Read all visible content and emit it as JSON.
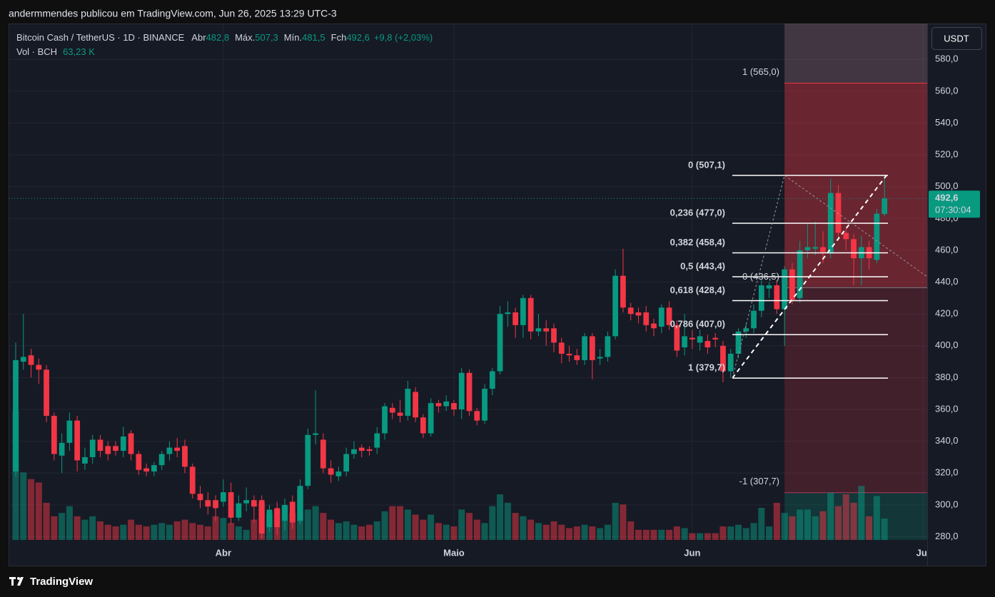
{
  "header": {
    "byline": "andermmendes publicou em TradingView.com, Jun 26, 2025 13:29 UTC-3"
  },
  "chart_data": {
    "type": "candlestick",
    "title": "Bitcoin Cash / TetherUS · 1D · BINANCE",
    "ohlc_legend": [
      {
        "label": "Abr",
        "value": "482,8"
      },
      {
        "label": "Máx.",
        "value": "507,3"
      },
      {
        "label": "Mín.",
        "value": "481,5"
      },
      {
        "label": "Fch",
        "value": "492,6"
      }
    ],
    "change": "+9,8 (+2,03%)",
    "volume_name": "Vol · BCH",
    "volume_value_label": "63,23 K",
    "currency": "USDT",
    "categories": [
      null,
      null,
      null,
      null,
      null,
      null,
      null,
      null,
      null,
      null,
      null,
      null,
      null,
      null,
      null,
      null,
      null,
      null,
      null,
      null,
      null,
      null,
      null,
      null,
      null,
      null,
      null,
      "Abr",
      null,
      null,
      null,
      null,
      null,
      null,
      null,
      null,
      null,
      null,
      null,
      null,
      null,
      null,
      null,
      null,
      null,
      null,
      null,
      null,
      null,
      null,
      null,
      null,
      null,
      null,
      null,
      null,
      null,
      "Maio",
      null,
      null,
      null,
      null,
      null,
      null,
      null,
      null,
      null,
      null,
      null,
      null,
      null,
      null,
      null,
      null,
      null,
      null,
      null,
      null,
      null,
      null,
      null,
      null,
      null,
      null,
      null,
      null,
      null,
      null,
      "Jun",
      null,
      null,
      null,
      null,
      null,
      null,
      null,
      null,
      null,
      null,
      null,
      null,
      null,
      null,
      null,
      null,
      null,
      null,
      null,
      null,
      null,
      null,
      null,
      null,
      null,
      null,
      null,
      null,
      null,
      "Jul"
    ],
    "open": [
      321,
      390,
      394,
      388,
      385,
      356,
      331,
      339,
      353,
      326,
      330,
      341,
      337,
      337,
      334,
      345,
      332,
      323,
      321,
      325,
      332,
      336,
      337,
      324,
      307,
      303,
      303,
      302,
      308,
      292,
      301,
      303,
      303,
      286,
      298,
      290,
      302,
      290,
      312,
      344,
      341,
      323,
      318,
      321,
      332,
      336,
      335,
      336,
      345,
      361,
      358,
      356,
      371,
      355,
      345,
      364,
      362,
      364,
      360,
      383,
      359,
      353,
      373,
      384,
      420,
      421,
      413,
      430,
      409,
      411,
      411,
      402,
      395,
      394,
      391,
      406,
      392,
      393,
      406,
      444,
      424,
      421,
      421,
      414,
      412,
      424,
      413,
      399,
      405,
      402,
      403,
      405,
      400,
      384,
      395,
      409,
      411,
      422,
      436,
      438,
      423,
      448,
      430,
      460,
      461,
      462,
      458,
      496,
      471,
      467,
      455,
      462,
      454,
      482.8,
      null,
      null,
      null,
      null,
      null
    ],
    "high": [
      402,
      420,
      398,
      392,
      388,
      358,
      345,
      358,
      356,
      336,
      344,
      344,
      340,
      340,
      349,
      347,
      334,
      326,
      327,
      334,
      340,
      342,
      341,
      326,
      312,
      308,
      306,
      316,
      314,
      306,
      311,
      306,
      306,
      300,
      302,
      304,
      306,
      316,
      348,
      372,
      345,
      328,
      324,
      336,
      340,
      338,
      337,
      349,
      364,
      364,
      366,
      378,
      374,
      357,
      367,
      366,
      369,
      366,
      386,
      385,
      361,
      376,
      386,
      425,
      428,
      424,
      432,
      432,
      420,
      416,
      414,
      405,
      400,
      398,
      408,
      408,
      398,
      409,
      448,
      461,
      427,
      424,
      425,
      417,
      426,
      428,
      416,
      420,
      410,
      410,
      407,
      408,
      403,
      398,
      411,
      414,
      426,
      442,
      440,
      441,
      450,
      452,
      466,
      477,
      478,
      472,
      505,
      501,
      474,
      470,
      469,
      466,
      486,
      507.3,
      null,
      null,
      null,
      null,
      null
    ],
    "low": [
      318,
      385,
      380,
      376,
      352,
      328,
      320,
      334,
      321,
      322,
      326,
      330,
      328,
      331,
      330,
      328,
      319,
      318,
      318,
      322,
      328,
      330,
      320,
      304,
      298,
      294,
      290,
      299,
      288,
      290,
      296,
      289,
      279,
      283,
      281,
      284,
      285,
      288,
      310,
      338,
      320,
      314,
      315,
      318,
      329,
      330,
      331,
      332,
      341,
      354,
      352,
      353,
      352,
      342,
      343,
      358,
      359,
      356,
      354,
      356,
      350,
      351,
      369,
      382,
      412,
      405,
      405,
      404,
      406,
      400,
      396,
      389,
      390,
      388,
      388,
      379,
      388,
      390,
      404,
      421,
      416,
      414,
      409,
      406,
      408,
      410,
      393,
      394,
      398,
      397,
      395,
      399,
      377,
      380,
      392,
      405,
      408,
      418,
      430,
      420,
      400,
      426,
      427,
      455,
      457,
      452,
      455,
      466,
      460,
      438,
      438,
      448,
      452,
      481.5,
      null,
      null,
      null,
      null,
      null
    ],
    "close": [
      391,
      393,
      388,
      385,
      356,
      332,
      339,
      353,
      328,
      330,
      341,
      334,
      332,
      334,
      343,
      332,
      322,
      321,
      325,
      332,
      336,
      334,
      324,
      307,
      303,
      299,
      298,
      308,
      292,
      301,
      303,
      299,
      282,
      297,
      286,
      300,
      289,
      312,
      344,
      345,
      323,
      319,
      321,
      332,
      335,
      334,
      334,
      345,
      362,
      358,
      356,
      373,
      355,
      345,
      364,
      362,
      365,
      360,
      383,
      359,
      353,
      373,
      384,
      420,
      421,
      413,
      430,
      409,
      411,
      409,
      402,
      395,
      394,
      391,
      406,
      391,
      393,
      406,
      444,
      424,
      420,
      419,
      413,
      411,
      424,
      413,
      397,
      406,
      404,
      406,
      399,
      404,
      384,
      395,
      409,
      411,
      422,
      438,
      438,
      423,
      448,
      429,
      460,
      462,
      462,
      459,
      496,
      471,
      467,
      455,
      462,
      455,
      483,
      492.6,
      null,
      null,
      null,
      null,
      null
    ],
    "volume": [
      380,
      200,
      180,
      170,
      110,
      70,
      80,
      100,
      70,
      60,
      70,
      55,
      45,
      40,
      45,
      60,
      45,
      40,
      45,
      50,
      45,
      55,
      60,
      50,
      45,
      40,
      70,
      65,
      50,
      40,
      30,
      60,
      110,
      80,
      90,
      100,
      80,
      150,
      90,
      100,
      80,
      60,
      50,
      55,
      45,
      40,
      45,
      55,
      85,
      100,
      100,
      90,
      75,
      60,
      75,
      50,
      45,
      40,
      90,
      80,
      60,
      50,
      100,
      135,
      110,
      80,
      70,
      60,
      50,
      45,
      55,
      45,
      35,
      40,
      45,
      40,
      35,
      45,
      110,
      105,
      55,
      30,
      30,
      30,
      30,
      30,
      40,
      35,
      20,
      20,
      20,
      20,
      40,
      40,
      45,
      35,
      50,
      95,
      40,
      110,
      80,
      70,
      90,
      90,
      70,
      85,
      140,
      100,
      135,
      110,
      160,
      70,
      130,
      63.23,
      null,
      null,
      null,
      null,
      null
    ],
    "colors": {
      "up": "#089981",
      "down": "#f23645"
    },
    "ylim": [
      278,
      602.5
    ],
    "yticks": [
      {
        "value": 280,
        "label": "280,0"
      },
      {
        "value": 300,
        "label": "300,0"
      },
      {
        "value": 320,
        "label": "320,0"
      },
      {
        "value": 340,
        "label": "340,0"
      },
      {
        "value": 360,
        "label": "360,0"
      },
      {
        "value": 380,
        "label": "380,0"
      },
      {
        "value": 400,
        "label": "400,0"
      },
      {
        "value": 420,
        "label": "420,0"
      },
      {
        "value": 440,
        "label": "440,0"
      },
      {
        "value": 460,
        "label": "460,0"
      },
      {
        "value": 480,
        "label": "480,0"
      },
      {
        "value": 500,
        "label": "500,0"
      },
      {
        "value": 520,
        "label": "520,0"
      },
      {
        "value": 540,
        "label": "540,0"
      },
      {
        "value": 560,
        "label": "560,0"
      },
      {
        "value": 580,
        "label": "580,0"
      }
    ],
    "grid": true,
    "last_price": {
      "value": 492.6,
      "label": "492,6",
      "countdown": "07:30:04"
    },
    "fibonacci": {
      "levels": [
        {
          "label": "0 (507,1)",
          "value": 507.1
        },
        {
          "label": "0,236 (477,0)",
          "value": 477.0
        },
        {
          "label": "0,382 (458,4)",
          "value": 458.4
        },
        {
          "label": "0,5 (443,4)",
          "value": 443.4
        },
        {
          "label": "0,618 (428,4)",
          "value": 428.4
        },
        {
          "label": "0,786 (407,0)",
          "value": 407.0
        },
        {
          "label": "1 (379,7)",
          "value": 379.7
        }
      ]
    },
    "position": {
      "target": {
        "label": "1 (565,0)",
        "value": 565.0
      },
      "entry": {
        "label": "0 (436,5)",
        "value": 436.5
      },
      "stop": {
        "label": "-1 (307,7)",
        "value": 307.7
      }
    }
  },
  "footer": {
    "brand": "TradingView"
  }
}
